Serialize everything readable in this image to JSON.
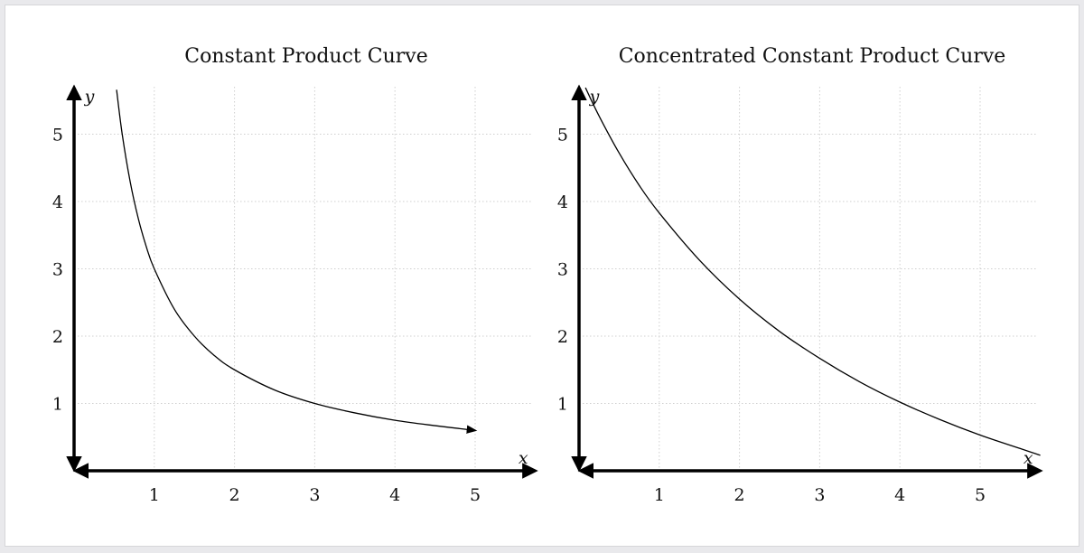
{
  "chart_data": [
    {
      "type": "line",
      "title": "Constant Product Curve",
      "xlabel": "x",
      "ylabel": "y",
      "xlim": [
        0,
        5.7
      ],
      "ylim": [
        0,
        5.7
      ],
      "x_ticks": [
        "1",
        "2",
        "3",
        "4",
        "5"
      ],
      "y_ticks": [
        "1",
        "2",
        "3",
        "4",
        "5"
      ],
      "grid": true,
      "curve_end_arrow": true,
      "series": [
        {
          "x": [
            0.53,
            0.6,
            0.7,
            0.8,
            0.9,
            1.0,
            1.25,
            1.5,
            1.75,
            2.0,
            2.5,
            3.0,
            3.5,
            4.0,
            4.5,
            5.0
          ],
          "y": [
            5.66,
            5.0,
            4.29,
            3.75,
            3.33,
            3.0,
            2.4,
            2.0,
            1.71,
            1.5,
            1.2,
            1.0,
            0.86,
            0.75,
            0.67,
            0.6
          ]
        }
      ]
    },
    {
      "type": "line",
      "title": "Concentrated Constant Product Curve",
      "xlabel": "x",
      "ylabel": "y",
      "xlim": [
        0,
        5.7
      ],
      "ylim": [
        0,
        5.7
      ],
      "x_ticks": [
        "1",
        "2",
        "3",
        "4",
        "5"
      ],
      "y_ticks": [
        "1",
        "2",
        "3",
        "4",
        "5"
      ],
      "grid": true,
      "curve_end_arrow": false,
      "series": [
        {
          "x": [
            0.08,
            0.25,
            0.5,
            0.75,
            1.0,
            1.5,
            2.0,
            2.5,
            3.0,
            3.5,
            4.0,
            4.5,
            5.0,
            5.5,
            5.75
          ],
          "y": [
            5.69,
            5.27,
            4.72,
            4.24,
            3.83,
            3.13,
            2.55,
            2.07,
            1.67,
            1.32,
            1.02,
            0.76,
            0.53,
            0.33,
            0.23
          ]
        }
      ]
    }
  ]
}
